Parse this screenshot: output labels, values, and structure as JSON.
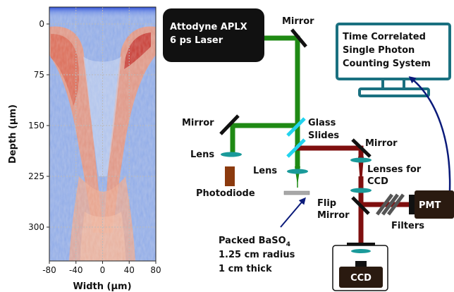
{
  "heatmap": {
    "y_label": "Depth (μm)",
    "x_label": "Width (μm)",
    "y_ticks": [
      {
        "value": 0,
        "label": "0"
      },
      {
        "value": 75,
        "label": "75"
      },
      {
        "value": 150,
        "label": "150"
      },
      {
        "value": 225,
        "label": "225"
      },
      {
        "value": 300,
        "label": "300"
      }
    ],
    "x_ticks": [
      {
        "value": -80,
        "label": "-80"
      },
      {
        "value": -40,
        "label": "-40"
      },
      {
        "value": 0,
        "label": "0"
      },
      {
        "value": 40,
        "label": "40"
      },
      {
        "value": 80,
        "label": "80"
      }
    ],
    "x_range": [
      -80,
      80
    ],
    "y_range": [
      -25,
      350
    ],
    "colormap": "coolwarm",
    "grid": true
  },
  "diagram": {
    "laser": {
      "line1": "Attodyne APLX",
      "line2": "6 ps Laser"
    },
    "tcspc": {
      "line1": "Time Correlated",
      "line2": "Single Photon",
      "line3": "Counting System"
    },
    "labels": {
      "mirror_top": "Mirror",
      "mirror_left": "Mirror",
      "glass_1": "Glass",
      "glass_2": "Slides",
      "mirror_right": "Mirror",
      "lens_left": "Lens",
      "photodiode": "Photodiode",
      "lens_center": "Lens",
      "lenses_ccd_1": "Lenses for",
      "lenses_ccd_2": "CCD",
      "flip_1": "Flip",
      "flip_2": "Mirror",
      "filters": "Filters",
      "pmt": "PMT",
      "ccd": "CCD",
      "sample_1": "Packed BaSO",
      "sample_sub": "4",
      "sample_2": "1.25 cm radius",
      "sample_3": "1 cm thick"
    },
    "colors": {
      "green_beam": "#1f8a14",
      "red_beam": "#7f0f0f",
      "glass": "#22d3ee",
      "lens": "#1a9a9a",
      "photodiode": "#8b3a0e",
      "box_dark": "#111111",
      "pmt_box": "#2a1a10",
      "monitor": "#1a7080",
      "arrow": "#0a1a7a"
    }
  }
}
